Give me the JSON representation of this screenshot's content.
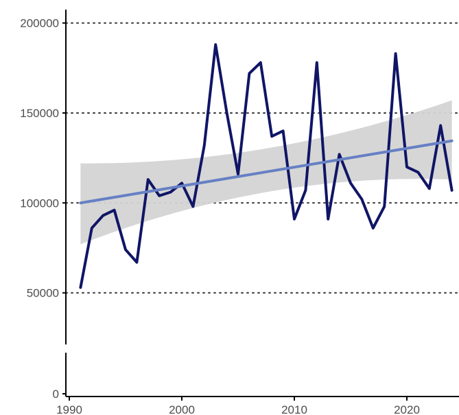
{
  "chart_data": {
    "type": "line",
    "title": "",
    "xlabel": "",
    "ylabel": "",
    "xlim": [
      1990,
      2024.5
    ],
    "ylim": [
      0,
      208000
    ],
    "axis_break": [
      20000,
      25000
    ],
    "x_ticks": [
      1990,
      2000,
      2010,
      2020
    ],
    "y_ticks": [
      0,
      50000,
      100000,
      150000,
      200000
    ],
    "grid": "horizontal dotted at 50000, 100000, 150000, 200000",
    "legend": "none",
    "series": [
      {
        "x": [
          1991,
          1992,
          1993,
          1994,
          1995,
          1996,
          1997,
          1998,
          1999,
          2000,
          2001,
          2002,
          2003,
          2004,
          2005,
          2006,
          2007,
          2008,
          2009,
          2010,
          2011,
          2012,
          2013,
          2014,
          2015,
          2016,
          2017,
          2018,
          2019,
          2020,
          2021,
          2022,
          2023,
          2024
        ],
        "y": [
          53000,
          86000,
          93000,
          96000,
          74000,
          67000,
          113000,
          104000,
          106000,
          111000,
          98000,
          132000,
          188000,
          150000,
          116000,
          172000,
          178000,
          137000,
          140000,
          91000,
          107000,
          178000,
          91000,
          127000,
          111000,
          102000,
          86000,
          98000,
          183000,
          120000,
          117000,
          108000,
          143000,
          107000
        ],
        "color": "#101566"
      }
    ],
    "trend": {
      "type": "linear fit with confidence band",
      "x": [
        1991,
        2024
      ],
      "y": [
        100000,
        134500
      ],
      "band_lower": [
        77000,
        113000
      ],
      "band_mid_lower": 114000,
      "band_upper": [
        122000,
        157000
      ],
      "band_mid_upper": 124000,
      "band_mid_x": 2007.5,
      "line_color": "#6680c4",
      "band_color": "#d4d4d4"
    }
  }
}
